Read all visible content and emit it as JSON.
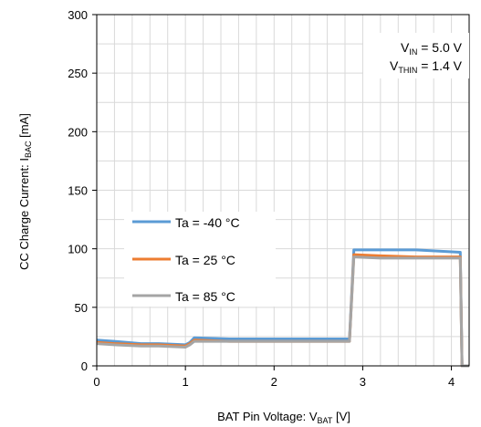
{
  "chart_data": {
    "type": "line",
    "xlabel": {
      "main": "BAT Pin Voltage: V",
      "sub": "BAT",
      "unit": " [V]"
    },
    "ylabel": {
      "main": "CC Charge Current: I",
      "sub": "BAC",
      "unit": " [mA]"
    },
    "xlim": [
      0,
      4.2
    ],
    "ylim": [
      0,
      300
    ],
    "xticks": [
      0,
      1,
      2,
      3,
      4
    ],
    "yticks": [
      0,
      50,
      100,
      150,
      200,
      250,
      300
    ],
    "xtick_labels": [
      "0",
      "1",
      "2",
      "3",
      "4"
    ],
    "ytick_labels": [
      "0",
      "50",
      "100",
      "150",
      "200",
      "250",
      "300"
    ],
    "grid": true,
    "legend_position": "center-left",
    "annotations": [
      {
        "main": "V",
        "sub": "IN",
        "rest": " = 5.0 V"
      },
      {
        "main": "V",
        "sub": "THIN",
        "rest": " = 1.4 V"
      }
    ],
    "series": [
      {
        "name": "Ta =  -40 °C",
        "color": "#5B9BD5",
        "x": [
          0,
          0.2,
          0.5,
          0.7,
          1.0,
          1.05,
          1.1,
          1.5,
          2.0,
          2.5,
          2.85,
          2.9,
          3.2,
          3.6,
          4.1,
          4.12,
          4.2
        ],
        "y": [
          22,
          21,
          19,
          19,
          18,
          20,
          24,
          23,
          23,
          23,
          23,
          99,
          99,
          99,
          97,
          0,
          0
        ]
      },
      {
        "name": "Ta =  25 °C",
        "color": "#ED7D31",
        "x": [
          0,
          0.2,
          0.5,
          0.7,
          1.0,
          1.05,
          1.1,
          1.5,
          2.0,
          2.5,
          2.85,
          2.9,
          3.2,
          3.6,
          4.1,
          4.12,
          4.2
        ],
        "y": [
          20,
          19,
          18,
          18,
          17,
          19,
          22,
          21,
          21,
          21,
          21,
          95,
          94,
          93,
          93,
          0,
          0
        ]
      },
      {
        "name": "Ta =  85 °C",
        "color": "#A5A5A5",
        "x": [
          0,
          0.2,
          0.5,
          0.7,
          1.0,
          1.05,
          1.1,
          1.5,
          2.0,
          2.5,
          2.85,
          2.9,
          3.2,
          3.6,
          4.1,
          4.12,
          4.2
        ],
        "y": [
          19,
          18,
          17,
          17,
          16,
          18,
          21,
          21,
          21,
          21,
          21,
          93,
          92,
          92,
          92,
          0,
          0
        ]
      }
    ]
  }
}
